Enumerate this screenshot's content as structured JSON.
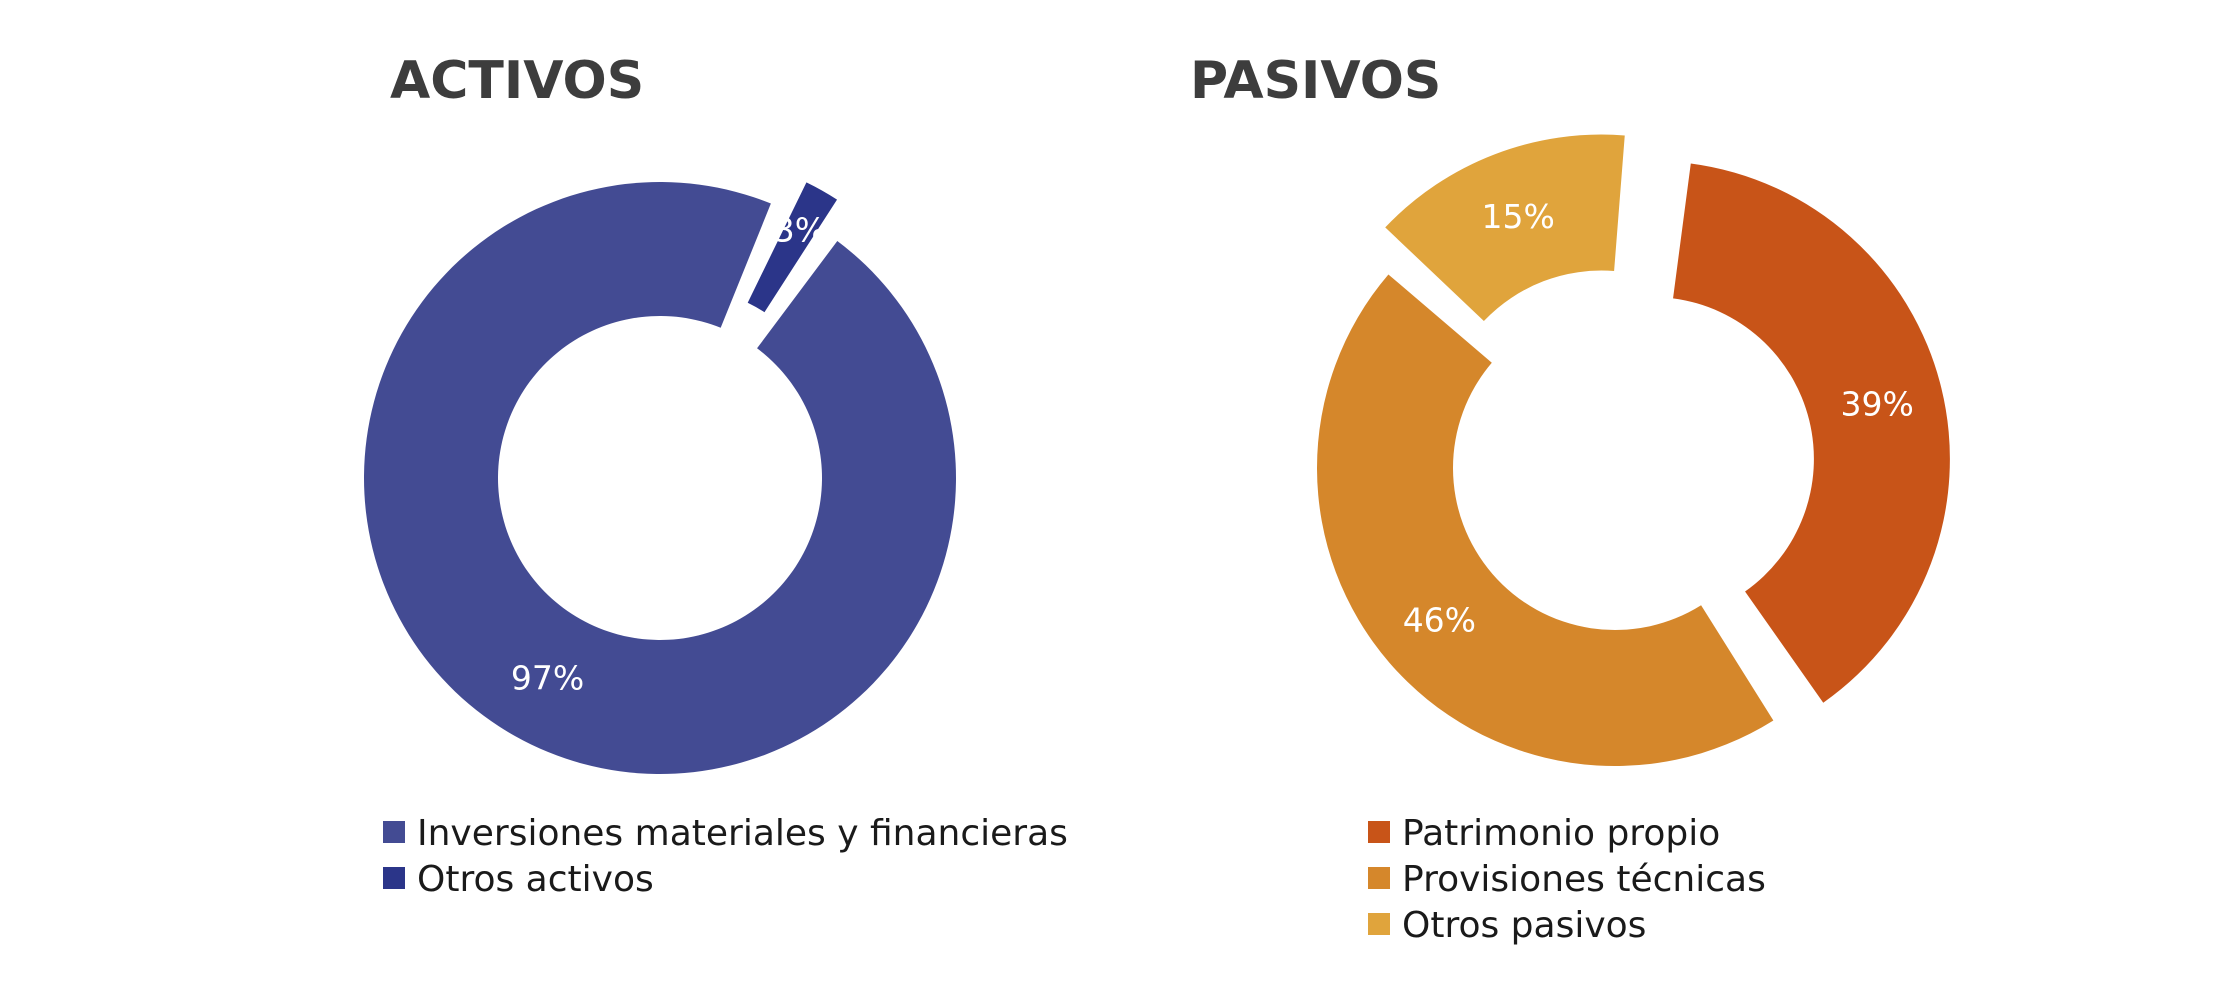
{
  "colors": {
    "background": "#ffffff",
    "title": "#3d3d3d",
    "label": "#ffffff",
    "legend_text": "#1a1a1a"
  },
  "chart_data": [
    {
      "type": "pie",
      "variant": "donut",
      "title": "ACTIVOS",
      "legend_placement": "bottom",
      "slices": [
        {
          "name": "Otros activos",
          "value": 3,
          "label": "3%",
          "color": "#2b3589",
          "exploded": true
        },
        {
          "name": "Inversiones materiales y financieras",
          "value": 97,
          "label": "97%",
          "color": "#434b93",
          "exploded": false
        }
      ],
      "legend": [
        {
          "name": "Inversiones materiales y financieras",
          "color": "#434b93"
        },
        {
          "name": "Otros activos",
          "color": "#2b3589"
        }
      ]
    },
    {
      "type": "pie",
      "variant": "donut",
      "title": "PASIVOS",
      "legend_placement": "bottom",
      "slices": [
        {
          "name": "Patrimonio propio",
          "value": 39,
          "label": "39%",
          "color": "#c85418",
          "exploded": true
        },
        {
          "name": "Provisiones técnicas",
          "value": 46,
          "label": "46%",
          "color": "#d5872b",
          "exploded": false
        },
        {
          "name": "Otros pasivos",
          "value": 15,
          "label": "15%",
          "color": "#e0a43c",
          "exploded": true
        }
      ],
      "legend": [
        {
          "name": "Patrimonio propio",
          "color": "#c85418"
        },
        {
          "name": "Provisiones técnicas",
          "color": "#d5872b"
        },
        {
          "name": "Otros pasivos",
          "color": "#e0a43c"
        }
      ]
    }
  ]
}
